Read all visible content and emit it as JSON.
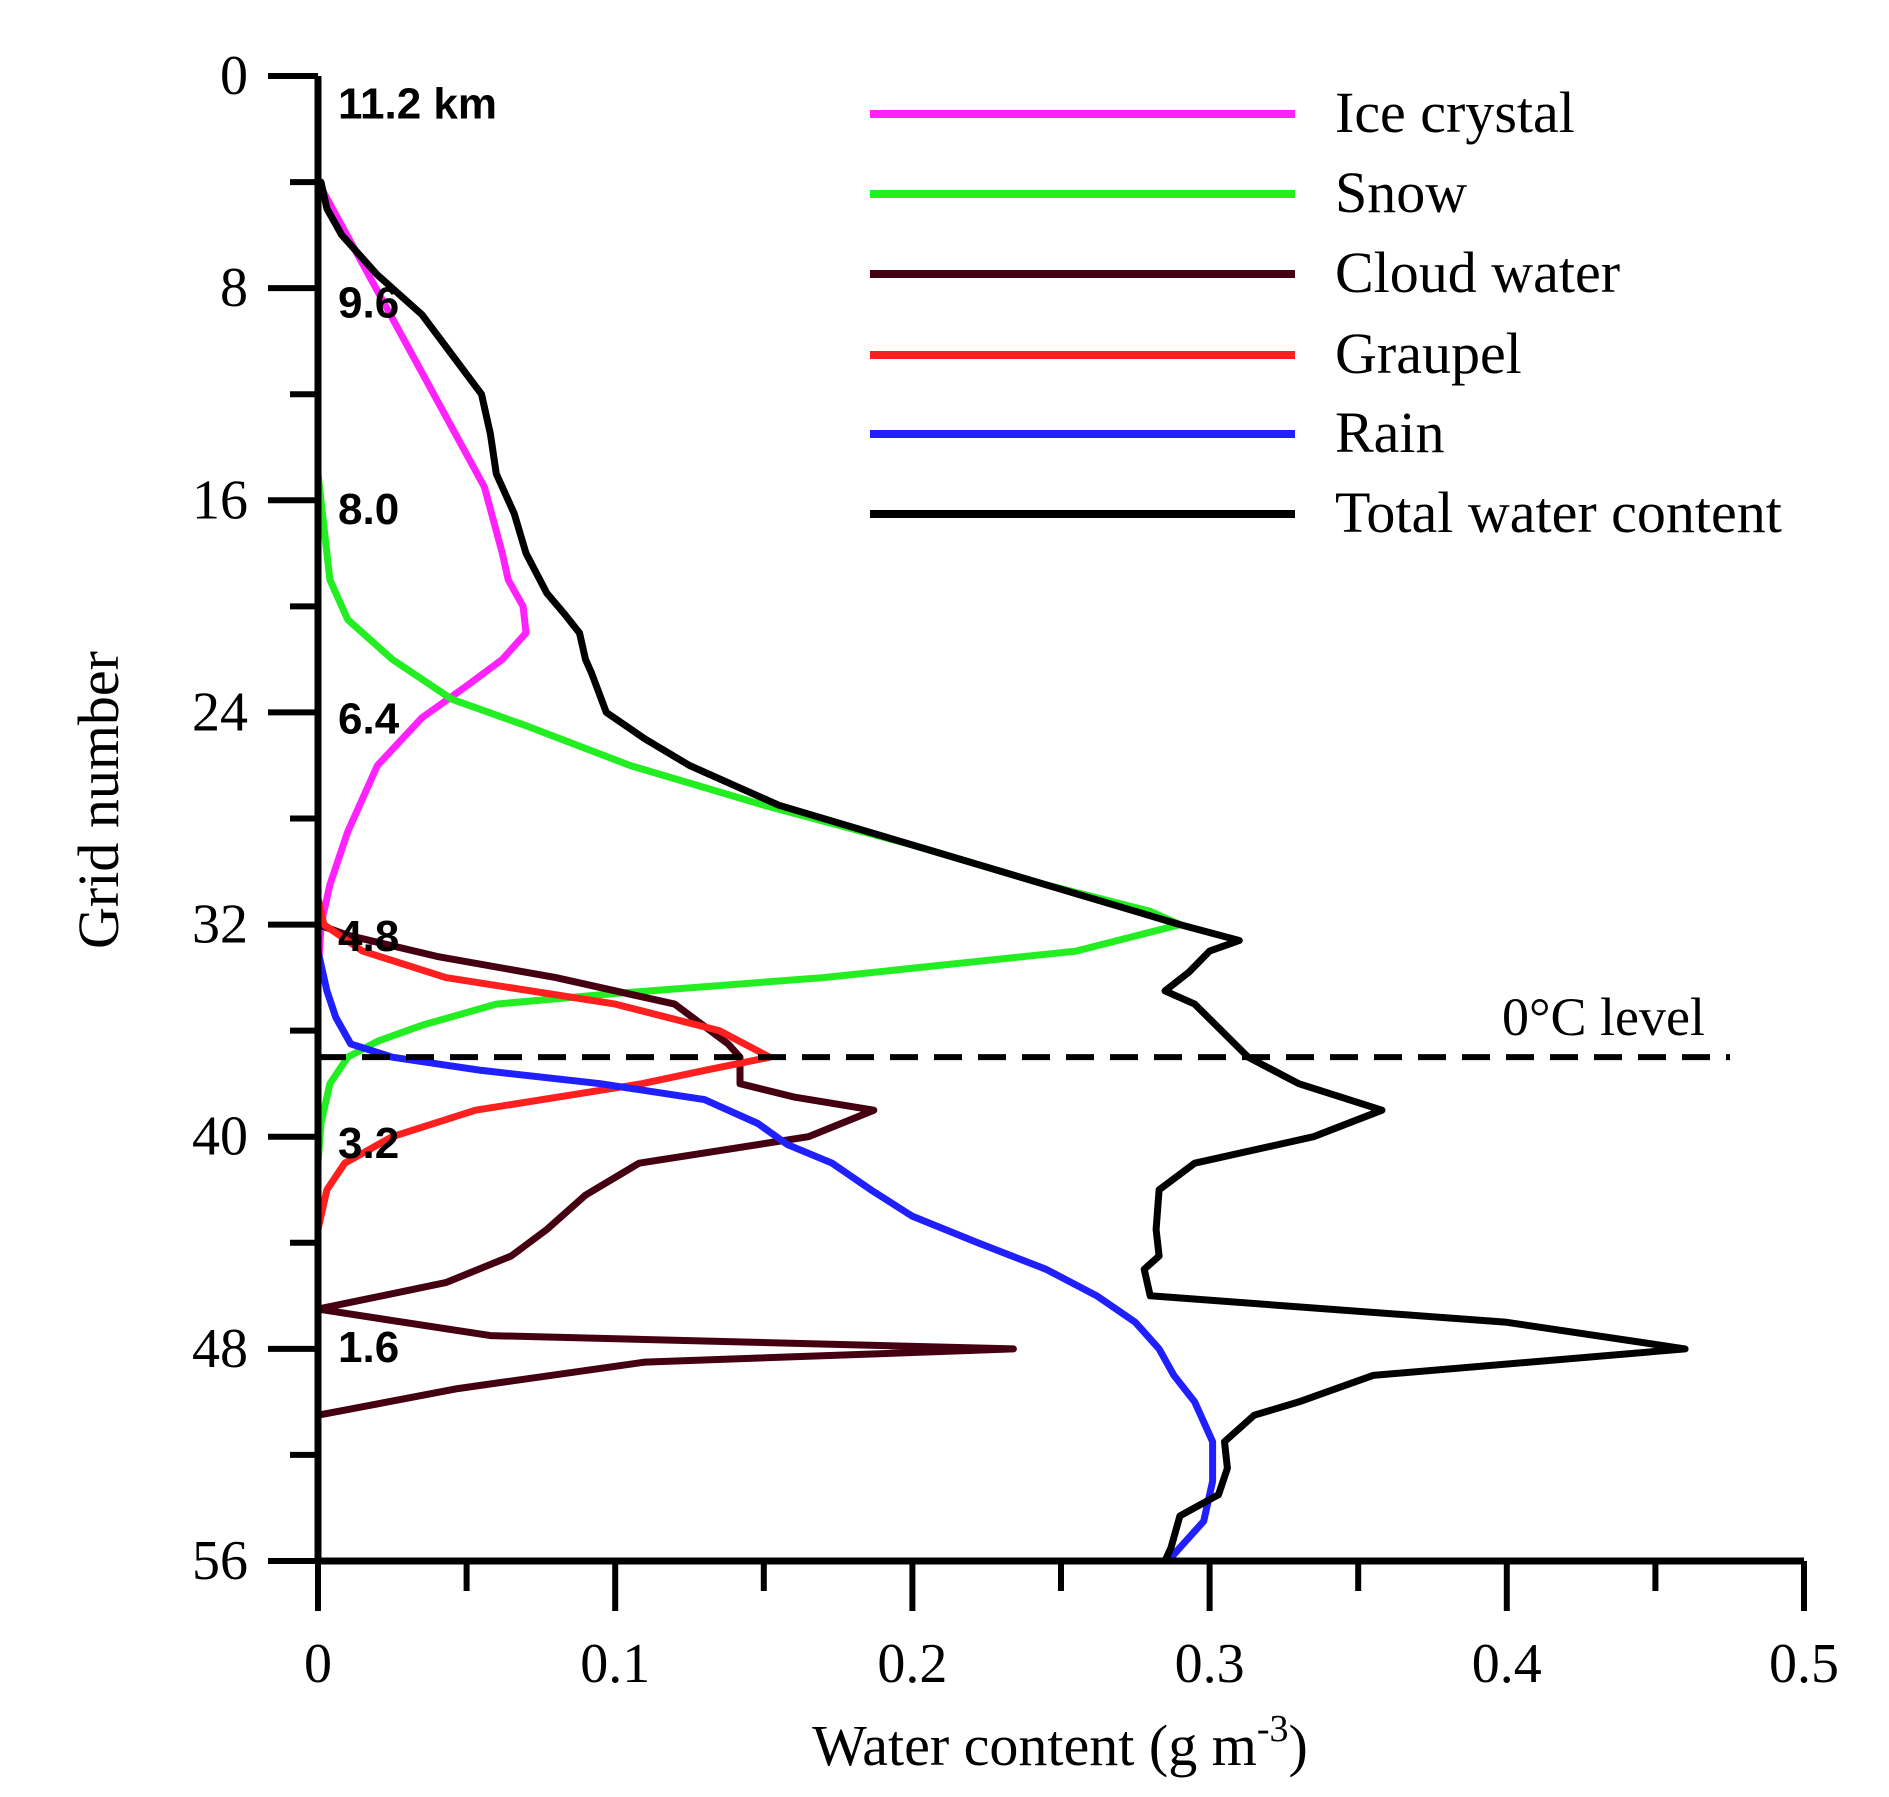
{
  "chart_data": {
    "type": "line",
    "xlabel": "Water content (g m",
    "xlabel_sup": "-3",
    "xlabel_end": ")",
    "ylabel": "Grid number",
    "xlim": [
      0,
      0.5
    ],
    "ylim": [
      56,
      0
    ],
    "x_ticks": [
      "0",
      "0.1",
      "0.2",
      "0.3",
      "0.4",
      "0.5"
    ],
    "x_tick_values": [
      0,
      0.1,
      0.2,
      0.3,
      0.4,
      0.5
    ],
    "y_ticks": [
      "0",
      "8",
      "16",
      "24",
      "32",
      "40",
      "48",
      "56"
    ],
    "y_tick_values": [
      0,
      8,
      16,
      24,
      32,
      40,
      48,
      56
    ],
    "height_labels": [
      {
        "grid": 1,
        "text": "11.2 km"
      },
      {
        "grid": 8.5,
        "text": "9.6"
      },
      {
        "grid": 16.3,
        "text": "8.0"
      },
      {
        "grid": 24.2,
        "text": "6.4"
      },
      {
        "grid": 32.4,
        "text": "4.8"
      },
      {
        "grid": 40.2,
        "text": "3.2"
      },
      {
        "grid": 47.9,
        "text": "1.6"
      }
    ],
    "reference_line": {
      "grid": 37,
      "label": "0°C level"
    },
    "legend_position": "top-right",
    "series": [
      {
        "name": "Ice crystal",
        "color": "#ff22ff",
        "points": [
          [
            0,
            4
          ],
          [
            0.056,
            15.5
          ],
          [
            0.062,
            18
          ],
          [
            0.064,
            19
          ],
          [
            0.069,
            20
          ],
          [
            0.07,
            21
          ],
          [
            0.062,
            22
          ],
          [
            0.05,
            23
          ],
          [
            0.035,
            24.2
          ],
          [
            0.02,
            26
          ],
          [
            0.01,
            28.5
          ],
          [
            0.004,
            30.5
          ],
          [
            0.001,
            32
          ],
          [
            0,
            34
          ],
          [
            0,
            40
          ]
        ]
      },
      {
        "name": "Snow",
        "color": "#22ee22",
        "points": [
          [
            0,
            15
          ],
          [
            0.002,
            17
          ],
          [
            0.004,
            19
          ],
          [
            0.01,
            20.5
          ],
          [
            0.025,
            22
          ],
          [
            0.045,
            23.5
          ],
          [
            0.07,
            24.5
          ],
          [
            0.105,
            26
          ],
          [
            0.15,
            27.5
          ],
          [
            0.2,
            29
          ],
          [
            0.245,
            30.5
          ],
          [
            0.28,
            31.5
          ],
          [
            0.29,
            32
          ],
          [
            0.255,
            33
          ],
          [
            0.17,
            34
          ],
          [
            0.1,
            34.6
          ],
          [
            0.06,
            35
          ],
          [
            0.035,
            35.8
          ],
          [
            0.02,
            36.4
          ],
          [
            0.01,
            37
          ],
          [
            0.004,
            38
          ],
          [
            0.001,
            39.5
          ],
          [
            0,
            41
          ],
          [
            0,
            44
          ]
        ]
      },
      {
        "name": "Cloud water",
        "color": "#440011",
        "points": [
          [
            0,
            1
          ],
          [
            0,
            32
          ],
          [
            0.01,
            32.4
          ],
          [
            0.04,
            33.2
          ],
          [
            0.08,
            34
          ],
          [
            0.12,
            35
          ],
          [
            0.138,
            36.5
          ],
          [
            0.142,
            37
          ],
          [
            0.142,
            38
          ],
          [
            0.16,
            38.5
          ],
          [
            0.187,
            39
          ],
          [
            0.165,
            40
          ],
          [
            0.108,
            41
          ],
          [
            0.09,
            42.2
          ],
          [
            0.077,
            43.5
          ],
          [
            0.065,
            44.5
          ],
          [
            0.043,
            45.5
          ],
          [
            0,
            46.5
          ],
          [
            0.058,
            47.5
          ],
          [
            0.234,
            48
          ],
          [
            0.11,
            48.5
          ],
          [
            0.047,
            49.5
          ],
          [
            0,
            50.5
          ],
          [
            0,
            56
          ]
        ]
      },
      {
        "name": "Graupel",
        "color": "#ff1f1f",
        "points": [
          [
            0,
            31
          ],
          [
            0.002,
            32
          ],
          [
            0.015,
            33
          ],
          [
            0.043,
            34
          ],
          [
            0.1,
            35
          ],
          [
            0.135,
            36
          ],
          [
            0.152,
            37
          ],
          [
            0.13,
            37.5
          ],
          [
            0.109,
            38
          ],
          [
            0.053,
            39
          ],
          [
            0.025,
            40
          ],
          [
            0.009,
            41
          ],
          [
            0.003,
            42
          ],
          [
            0,
            43.5
          ],
          [
            0,
            50.5
          ]
        ]
      },
      {
        "name": "Rain",
        "color": "#1f1fff",
        "points": [
          [
            0,
            33
          ],
          [
            0.003,
            34.5
          ],
          [
            0.006,
            35.5
          ],
          [
            0.011,
            36.5
          ],
          [
            0.025,
            37
          ],
          [
            0.055,
            37.5
          ],
          [
            0.095,
            38
          ],
          [
            0.13,
            38.6
          ],
          [
            0.148,
            39.5
          ],
          [
            0.158,
            40.3
          ],
          [
            0.173,
            41
          ],
          [
            0.186,
            42
          ],
          [
            0.2,
            43
          ],
          [
            0.222,
            44
          ],
          [
            0.245,
            45
          ],
          [
            0.262,
            46
          ],
          [
            0.275,
            47
          ],
          [
            0.283,
            48
          ],
          [
            0.288,
            49
          ],
          [
            0.295,
            50
          ],
          [
            0.301,
            51.5
          ],
          [
            0.301,
            53
          ],
          [
            0.298,
            54.5
          ],
          [
            0.29,
            55.5
          ],
          [
            0.286,
            56
          ]
        ]
      },
      {
        "name": "Total water content",
        "color": "#000000",
        "points": [
          [
            0.001,
            4
          ],
          [
            0.003,
            5
          ],
          [
            0.008,
            6
          ],
          [
            0.02,
            7.5
          ],
          [
            0.035,
            9
          ],
          [
            0.045,
            10.5
          ],
          [
            0.055,
            12
          ],
          [
            0.058,
            13.5
          ],
          [
            0.06,
            15
          ],
          [
            0.066,
            16.5
          ],
          [
            0.07,
            18
          ],
          [
            0.077,
            19.5
          ],
          [
            0.083,
            20.3
          ],
          [
            0.088,
            21
          ],
          [
            0.09,
            22
          ],
          [
            0.092,
            22.5
          ],
          [
            0.097,
            24
          ],
          [
            0.11,
            25
          ],
          [
            0.125,
            26
          ],
          [
            0.155,
            27.5
          ],
          [
            0.2,
            29
          ],
          [
            0.245,
            30.5
          ],
          [
            0.275,
            31.5
          ],
          [
            0.29,
            32
          ],
          [
            0.31,
            32.6
          ],
          [
            0.3,
            33
          ],
          [
            0.293,
            33.8
          ],
          [
            0.285,
            34.5
          ],
          [
            0.295,
            35
          ],
          [
            0.313,
            37
          ],
          [
            0.33,
            38
          ],
          [
            0.358,
            39
          ],
          [
            0.335,
            40
          ],
          [
            0.295,
            41
          ],
          [
            0.283,
            42
          ],
          [
            0.282,
            43.5
          ],
          [
            0.283,
            44.5
          ],
          [
            0.278,
            45
          ],
          [
            0.28,
            46
          ],
          [
            0.4,
            47
          ],
          [
            0.46,
            48
          ],
          [
            0.355,
            49
          ],
          [
            0.33,
            50
          ],
          [
            0.315,
            50.5
          ],
          [
            0.305,
            51.5
          ],
          [
            0.306,
            52.5
          ],
          [
            0.303,
            53.5
          ],
          [
            0.29,
            54.3
          ],
          [
            0.287,
            55.5
          ],
          [
            0.285,
            56
          ]
        ]
      }
    ]
  }
}
